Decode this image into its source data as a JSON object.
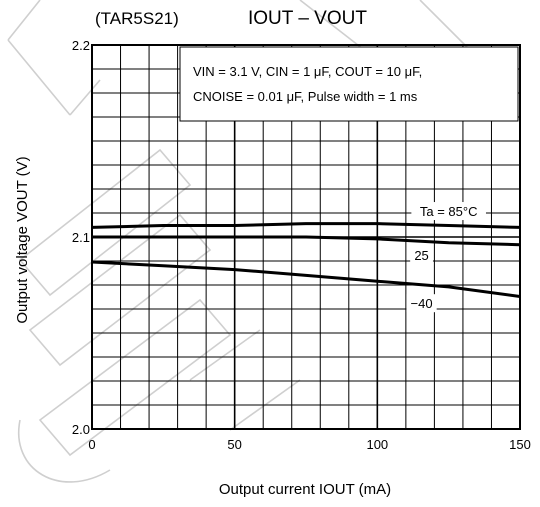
{
  "chart_data": {
    "type": "line",
    "title_prefix": "(TAR5S21)",
    "title": "IOUT – VOUT",
    "xlabel": "Output current IOUT (mA)",
    "ylabel": "Output voltage VOUT (V)",
    "xlim": [
      0,
      150
    ],
    "ylim": [
      2.0,
      2.2
    ],
    "x_ticks": [
      0,
      50,
      100,
      150
    ],
    "x_tick_labels": [
      "0",
      "50",
      "100",
      "150"
    ],
    "y_ticks": [
      2.0,
      2.1,
      2.2
    ],
    "y_tick_labels": [
      "2.0",
      "2.1",
      "2.2"
    ],
    "grid": true,
    "legend": null,
    "conditions": {
      "line1": "VIN = 3.1 V, CIN = 1 μF, COUT = 10 μF,",
      "line2": "CNOISE = 0.01 μF, Pulse width = 1 ms"
    },
    "series": [
      {
        "name": "Ta = 85°C",
        "x": [
          0,
          25,
          50,
          75,
          100,
          125,
          150
        ],
        "y": [
          2.105,
          2.106,
          2.106,
          2.107,
          2.107,
          2.106,
          2.105
        ]
      },
      {
        "name": "25",
        "x": [
          0,
          25,
          50,
          75,
          100,
          125,
          150
        ],
        "y": [
          2.1,
          2.1,
          2.1,
          2.1,
          2.099,
          2.097,
          2.096
        ]
      },
      {
        "name": "−40",
        "x": [
          0,
          25,
          50,
          75,
          100,
          125,
          150
        ],
        "y": [
          2.087,
          2.085,
          2.083,
          2.08,
          2.077,
          2.074,
          2.069
        ]
      }
    ],
    "series_label_positions": [
      {
        "label": "Ta = 85°C",
        "x": 125,
        "y": 2.113
      },
      {
        "label": "25",
        "x": 115.5,
        "y": 2.09
      },
      {
        "label": "−40",
        "x": 115.5,
        "y": 2.065
      }
    ]
  }
}
